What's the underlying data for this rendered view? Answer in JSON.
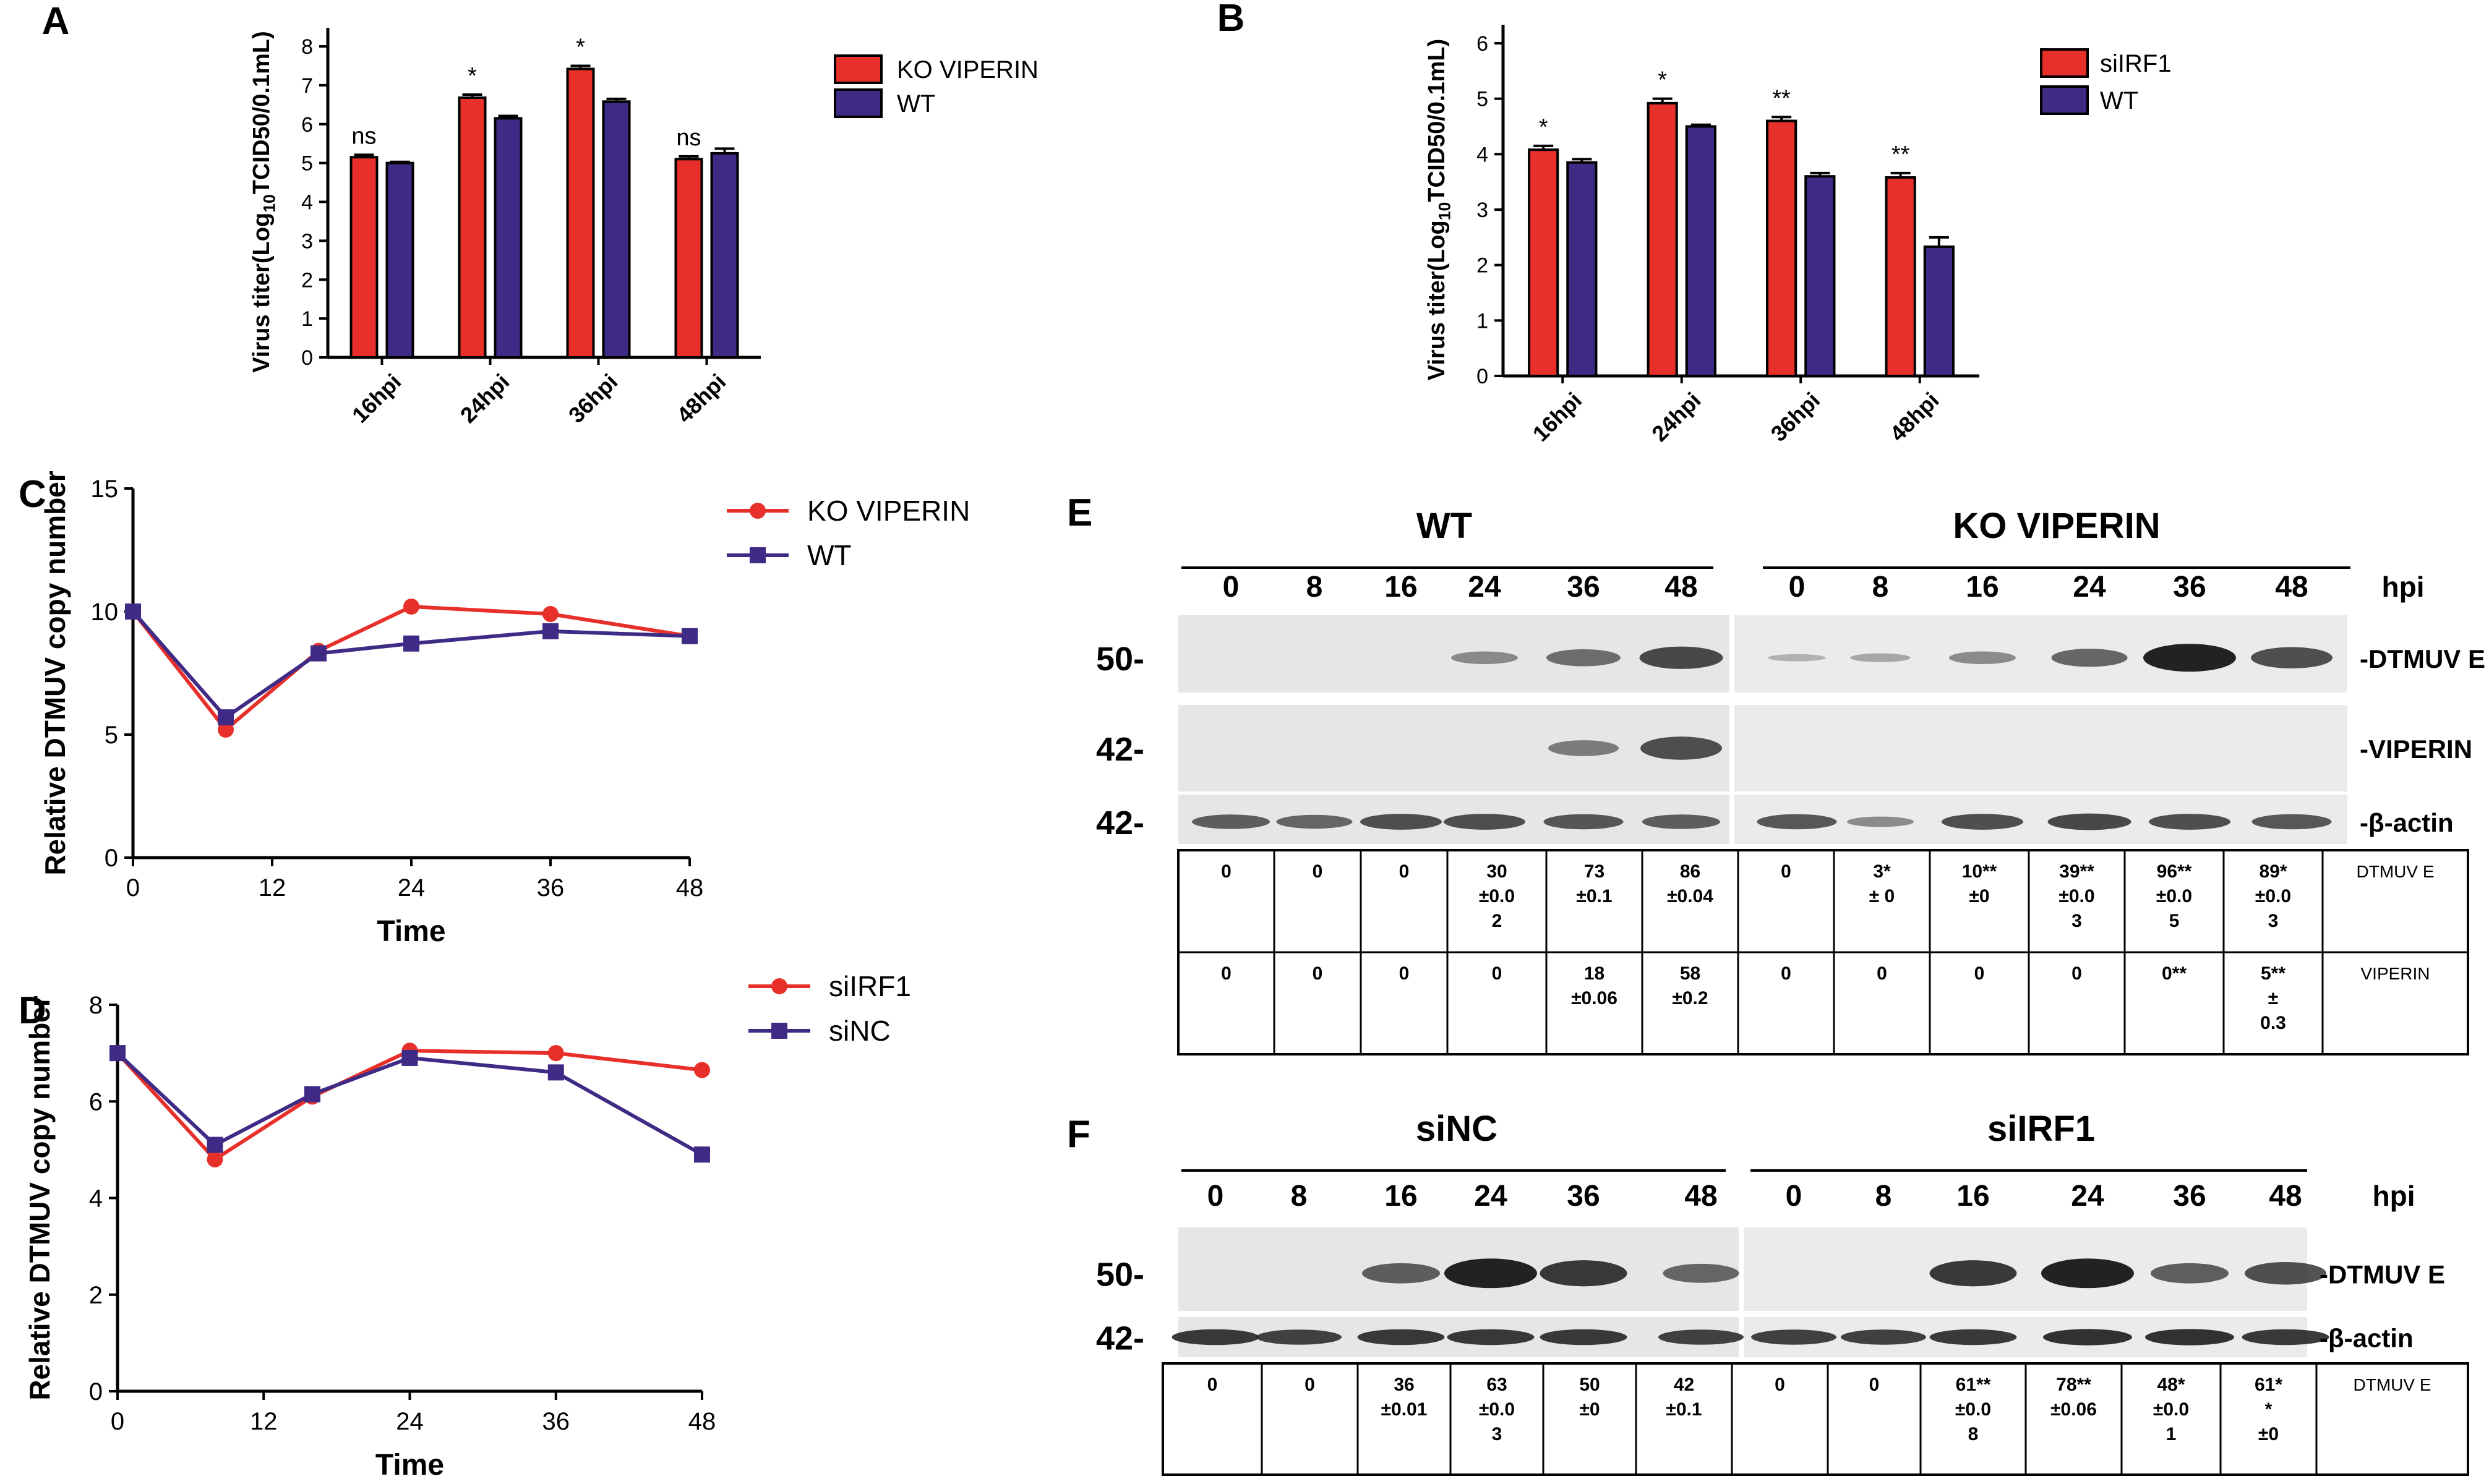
{
  "colors": {
    "red": "#e8302b",
    "purple": "#3f2a86",
    "axis": "#000000",
    "band": "#222222",
    "blot": "#d9d9d9"
  },
  "panels": {
    "a": "A",
    "b": "B",
    "c": "C",
    "d": "D",
    "e": "E",
    "f": "F"
  },
  "chart_data": [
    {
      "id": "A",
      "type": "bar",
      "ylabel": "Virus titer(Log10TCID50/0.1mL)",
      "categories": [
        "16hpi",
        "24hpi",
        "36hpi",
        "48hpi"
      ],
      "ylim": [
        0,
        8
      ],
      "yticks": [
        "0",
        "1",
        "2",
        "3",
        "4",
        "5",
        "6",
        "7",
        "8"
      ],
      "series": [
        {
          "name": "KO VIPERIN",
          "values": [
            5.15,
            6.68,
            7.42,
            5.1
          ],
          "errors": [
            0.06,
            0.08,
            0.08,
            0.07
          ]
        },
        {
          "name": "WT",
          "values": [
            5.0,
            6.15,
            6.58,
            5.25
          ],
          "errors": [
            0.03,
            0.06,
            0.07,
            0.12
          ]
        }
      ],
      "annotations": [
        "ns",
        "*",
        "*",
        "ns"
      ]
    },
    {
      "id": "B",
      "type": "bar",
      "ylabel": "Virus titer(Log10TCID50/0.1mL)",
      "categories": [
        "16hpi",
        "24hpi",
        "36hpi",
        "48hpi"
      ],
      "ylim": [
        0,
        6
      ],
      "yticks": [
        "0",
        "1",
        "2",
        "3",
        "4",
        "5",
        "6"
      ],
      "series": [
        {
          "name": "siIRF1",
          "values": [
            4.08,
            4.92,
            4.6,
            3.58
          ],
          "errors": [
            0.07,
            0.08,
            0.07,
            0.08
          ]
        },
        {
          "name": "WT",
          "values": [
            3.85,
            4.5,
            3.6,
            2.33
          ],
          "errors": [
            0.06,
            0.03,
            0.06,
            0.17
          ]
        }
      ],
      "annotations": [
        "*",
        "*",
        "**",
        "**"
      ]
    },
    {
      "id": "C",
      "type": "line",
      "xlabel": "Time",
      "ylabel": "Relative DTMUV copy number",
      "x": [
        0,
        8,
        16,
        24,
        36,
        48
      ],
      "xticks": [
        "0",
        "12",
        "24",
        "36",
        "48"
      ],
      "xtick_values": [
        0,
        12,
        24,
        36,
        48
      ],
      "ylim": [
        0,
        15
      ],
      "yticks": [
        "0",
        "5",
        "10",
        "15"
      ],
      "series": [
        {
          "name": "KO VIPERIN",
          "marker": "circle",
          "values": [
            10,
            5.2,
            8.4,
            10.2,
            9.9,
            9.0
          ]
        },
        {
          "name": "WT",
          "marker": "square",
          "values": [
            10,
            5.7,
            8.3,
            8.7,
            9.2,
            9.0
          ]
        }
      ]
    },
    {
      "id": "D",
      "type": "line",
      "xlabel": "Time",
      "ylabel": "Relative DTMUV copy number",
      "x": [
        0,
        8,
        16,
        24,
        36,
        48
      ],
      "xticks": [
        "0",
        "12",
        "24",
        "36",
        "48"
      ],
      "xtick_values": [
        0,
        12,
        24,
        36,
        48
      ],
      "ylim": [
        0,
        8
      ],
      "yticks": [
        "0",
        "2",
        "4",
        "6",
        "8"
      ],
      "series": [
        {
          "name": "siIRF1",
          "marker": "circle",
          "values": [
            7.0,
            4.8,
            6.1,
            7.05,
            7.0,
            6.65
          ]
        },
        {
          "name": "siNC",
          "marker": "square",
          "values": [
            7.0,
            5.1,
            6.15,
            6.9,
            6.6,
            4.9
          ]
        }
      ]
    }
  ],
  "blot_e": {
    "group1": "WT",
    "group2": "KO VIPERIN",
    "hpi": "hpi",
    "lanes1": [
      "0",
      "8",
      "16",
      "24",
      "36",
      "48"
    ],
    "lanes2": [
      "0",
      "8",
      "16",
      "24",
      "36",
      "48"
    ],
    "band_intensity": {
      "DTMUV E": [
        0,
        0,
        0,
        0.3,
        0.5,
        0.75,
        0.05,
        0.12,
        0.3,
        0.55,
        1.0,
        0.7
      ],
      "VIPERIN": [
        0,
        0,
        0,
        0,
        0.4,
        0.7,
        0,
        0,
        0,
        0,
        0,
        0
      ],
      "β-actin": [
        0.6,
        0.55,
        0.7,
        0.7,
        0.65,
        0.6,
        0.65,
        0.3,
        0.7,
        0.75,
        0.7,
        0.65
      ]
    },
    "rows": [
      {
        "mw": "50-",
        "label": "-DTMUV E"
      },
      {
        "mw": "42-",
        "label": "-VIPERIN"
      },
      {
        "mw": "42-",
        "label": "-β-actin"
      }
    ],
    "table": [
      {
        "label": "DTMUV E",
        "cells": [
          [
            "0"
          ],
          [
            "0"
          ],
          [
            "0"
          ],
          [
            "30",
            "±0.0",
            "2"
          ],
          [
            "73",
            "±0.1"
          ],
          [
            "86",
            "±0.04"
          ],
          [
            "0"
          ],
          [
            "3*",
            "± 0"
          ],
          [
            "10**",
            "±0"
          ],
          [
            "39**",
            "±0.0",
            "3"
          ],
          [
            "96**",
            "±0.0",
            "5"
          ],
          [
            "89*",
            "±0.0",
            "3"
          ]
        ]
      },
      {
        "label": "VIPERIN",
        "cells": [
          [
            "0"
          ],
          [
            "0"
          ],
          [
            "0"
          ],
          [
            "0"
          ],
          [
            "18",
            "±0.06"
          ],
          [
            "58",
            "±0.2"
          ],
          [
            "0"
          ],
          [
            "0"
          ],
          [
            "0"
          ],
          [
            "0"
          ],
          [
            "0**"
          ],
          [
            "5**",
            "±",
            "0.3"
          ]
        ]
      }
    ]
  },
  "blot_f": {
    "group1": "siNC",
    "group2": "siIRF1",
    "hpi": "hpi",
    "lanes1": [
      "0",
      "8",
      "16",
      "24",
      "36",
      "48"
    ],
    "lanes2": [
      "0",
      "8",
      "16",
      "24",
      "36",
      "48"
    ],
    "band_intensity": {
      "DTMUV E": [
        0,
        0,
        0.6,
        1.0,
        0.85,
        0.55,
        0,
        0,
        0.85,
        1.0,
        0.6,
        0.7
      ],
      "β-actin": [
        0.85,
        0.8,
        0.85,
        0.85,
        0.85,
        0.8,
        0.8,
        0.8,
        0.85,
        0.9,
        0.9,
        0.85
      ]
    },
    "rows": [
      {
        "mw": "50-",
        "label": "-DTMUV E"
      },
      {
        "mw": "42-",
        "label": "-β-actin"
      }
    ],
    "table": [
      {
        "label": "DTMUV E",
        "cells": [
          [
            "0"
          ],
          [
            "0"
          ],
          [
            "36",
            "±0.01"
          ],
          [
            "63",
            "±0.0",
            "3"
          ],
          [
            "50",
            "±0"
          ],
          [
            "42",
            "±0.1"
          ],
          [
            "0"
          ],
          [
            "0"
          ],
          [
            "61**",
            "±0.0",
            "8"
          ],
          [
            "78**",
            "±0.06"
          ],
          [
            "48*",
            "±0.0",
            "1"
          ],
          [
            "61*",
            "*",
            "±0"
          ]
        ]
      }
    ]
  }
}
